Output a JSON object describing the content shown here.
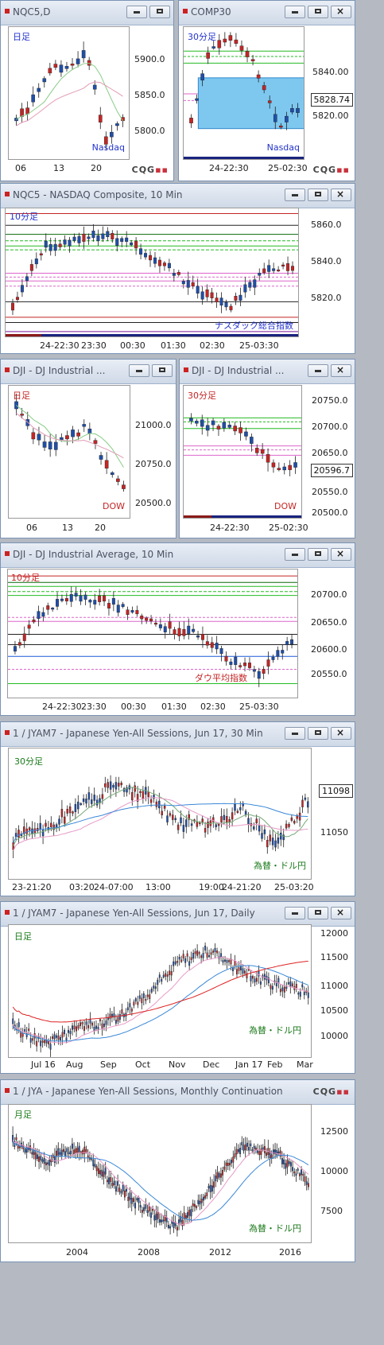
{
  "colors": {
    "up": "#1f4fa8",
    "down": "#c42525",
    "accent": "#3344cc"
  },
  "w1": {
    "title": "NQC5,D",
    "chart_label": "日足",
    "corner_label": "Nasdaq",
    "yticks": [
      "5900.0",
      "5850.0",
      "5800.0"
    ],
    "xticks": [
      "06",
      "13",
      "20"
    ]
  },
  "w2": {
    "title": "COMP30",
    "chart_label": "30分足",
    "corner_label": "Nasdaq",
    "yticks": [
      "5840.00",
      "5820.00"
    ],
    "price": "5828.74",
    "xticks": [
      "24-22:30",
      "25-02:30"
    ]
  },
  "w3": {
    "title": "NQC5 - NASDAQ Composite, 10 Min",
    "chart_label": "10分足",
    "corner_label": "ナスダック総合指数",
    "yticks": [
      "5860.0",
      "5840.0",
      "5820.0"
    ],
    "xticks": [
      "24-22:30",
      "23:30",
      "00:30",
      "01:30",
      "02:30",
      "25-03:30"
    ]
  },
  "w4": {
    "title": "DJI - DJ Industrial ...",
    "chart_label": "日足",
    "corner_label": "DOW",
    "yticks": [
      "21000.0",
      "20750.0",
      "20500.0"
    ],
    "xticks": [
      "06",
      "13",
      "20"
    ]
  },
  "w5": {
    "title": "DJI - DJ Industrial ...",
    "chart_label": "30分足",
    "corner_label": "DOW",
    "yticks": [
      "20750.0",
      "20700.0",
      "20650.0",
      "20550.0",
      "20500.0"
    ],
    "price": "20596.7",
    "xticks": [
      "24-22:30",
      "25-02:30"
    ]
  },
  "w6": {
    "title": "DJI - DJ Industrial Average, 10 Min",
    "chart_label": "10分足",
    "corner_label": "ダウ平均指数",
    "yticks": [
      "20700.0",
      "20650.0",
      "20600.0",
      "20550.0"
    ],
    "xticks": [
      "24-22:30",
      "23:30",
      "00:30",
      "01:30",
      "02:30",
      "25-03:30"
    ]
  },
  "w7": {
    "title": "1 / JYAM7 - Japanese Yen-All Sessions, Jun 17, 30 Min",
    "chart_label": "30分足",
    "corner_label": "為替・ドル円",
    "yticks": [
      "11050"
    ],
    "price": "11098",
    "xticks": [
      "23-21:20",
      "03:20",
      "24-07:00",
      "13:00",
      "19:00",
      "24-21:20",
      "25-03:20"
    ]
  },
  "w8": {
    "title": "1 / JYAM7 - Japanese Yen-All Sessions, Jun 17, Daily",
    "chart_label": "日足",
    "corner_label": "為替・ドル円",
    "yticks": [
      "12000",
      "11500",
      "11000",
      "10500",
      "10000"
    ],
    "xticks": [
      "Jul 16",
      "Aug",
      "Sep",
      "Oct",
      "Nov",
      "Dec",
      "Jan 17",
      "Feb",
      "Mar"
    ]
  },
  "w9": {
    "title": "1 / JYA - Japanese Yen-All Sessions, Monthly Continuation",
    "chart_label": "月足",
    "corner_label": "為替・ドル円",
    "yticks": [
      "12500",
      "10000",
      "7500"
    ],
    "xticks": [
      "2004",
      "2008",
      "2012",
      "2016"
    ]
  },
  "cqg": {
    "text": "CQG"
  }
}
